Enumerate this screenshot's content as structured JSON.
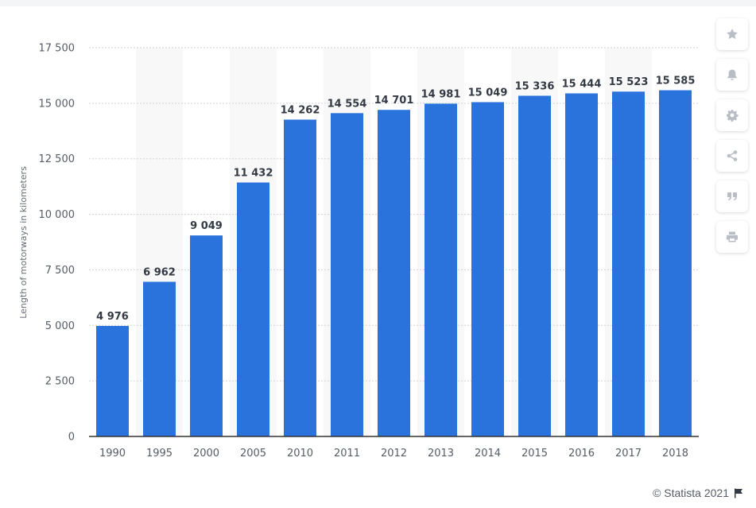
{
  "chart_data": {
    "type": "bar",
    "categories": [
      "1990",
      "1995",
      "2000",
      "2005",
      "2010",
      "2011",
      "2012",
      "2013",
      "2014",
      "2015",
      "2016",
      "2017",
      "2018"
    ],
    "values": [
      4976,
      6962,
      9049,
      11432,
      14262,
      14554,
      14701,
      14981,
      15049,
      15336,
      15444,
      15523,
      15585
    ],
    "value_labels": [
      "4 976",
      "6 962",
      "9 049",
      "11 432",
      "14 262",
      "14 554",
      "14 701",
      "14 981",
      "15 049",
      "15 336",
      "15 444",
      "15 523",
      "15 585"
    ],
    "ylabel": "Length of motorways in kilometers",
    "xlabel": "",
    "ylim": [
      0,
      17500
    ],
    "yticks": [
      0,
      2500,
      5000,
      7500,
      10000,
      12500,
      15000,
      17500
    ],
    "ytick_labels": [
      "0",
      "2 500",
      "5 000",
      "7 500",
      "10 000",
      "12 500",
      "15 000",
      "17 500"
    ],
    "bar_color": "#2b73dc",
    "grid": true
  },
  "toolbar": {
    "buttons": [
      {
        "name": "favorite-button",
        "icon": "star-icon"
      },
      {
        "name": "notification-button",
        "icon": "bell-icon"
      },
      {
        "name": "settings-button",
        "icon": "gear-icon"
      },
      {
        "name": "share-button",
        "icon": "share-icon"
      },
      {
        "name": "cite-button",
        "icon": "quote-icon"
      },
      {
        "name": "print-button",
        "icon": "print-icon"
      }
    ]
  },
  "credit": {
    "text": "© Statista 2021"
  }
}
